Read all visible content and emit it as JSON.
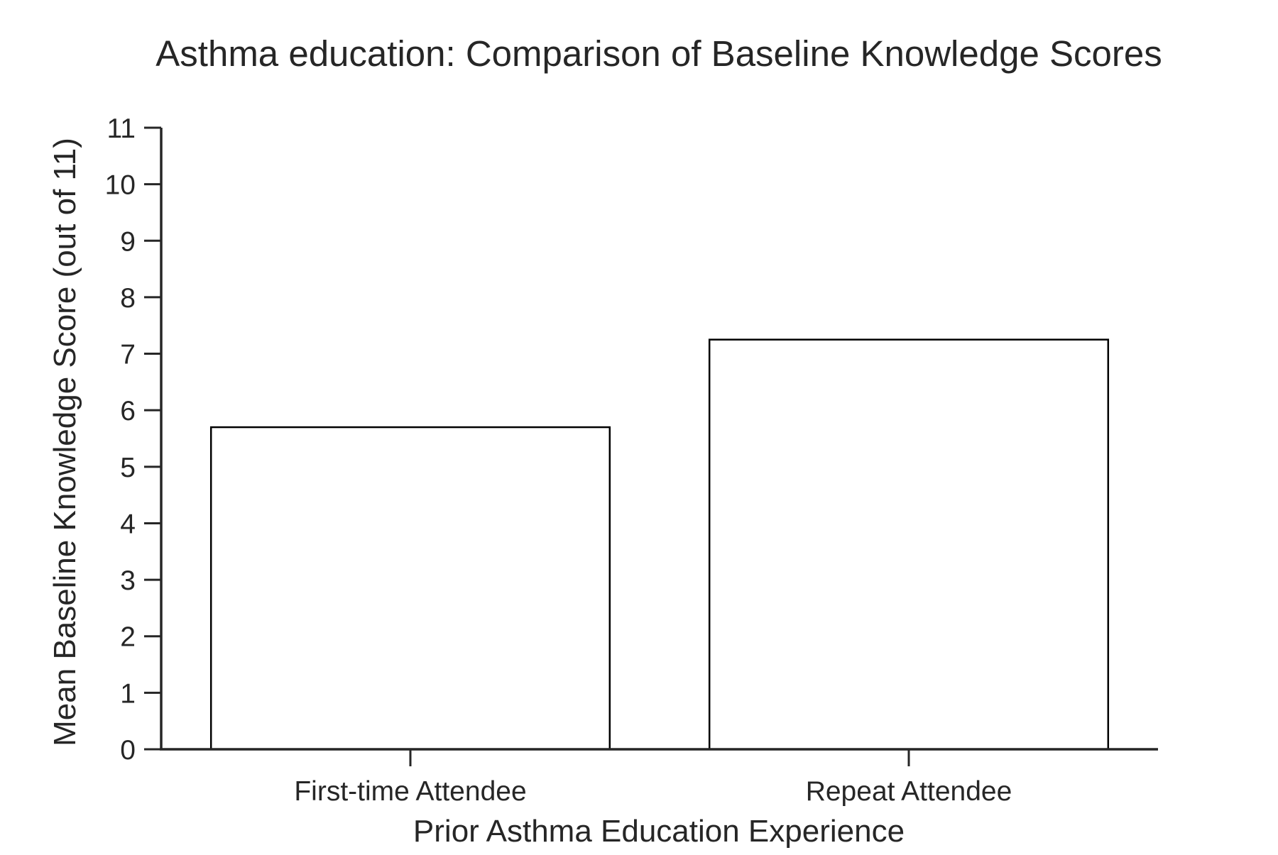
{
  "chart_data": {
    "type": "bar",
    "title": "Asthma education: Comparison of Baseline Knowledge Scores",
    "xlabel": "Prior Asthma Education Experience",
    "ylabel": "Mean Baseline Knowledge Score (out of 11)",
    "categories": [
      "First-time Attendee",
      "Repeat Attendee"
    ],
    "values": [
      5.7,
      7.25
    ],
    "ylim": [
      0,
      11
    ],
    "yticks": [
      0,
      1,
      2,
      3,
      4,
      5,
      6,
      7,
      8,
      9,
      10,
      11
    ],
    "grid": false,
    "legend": "none",
    "colors": {
      "bar_fill": "#ffffff",
      "bar_edge": "#000000",
      "axis": "#262626",
      "text": "#262626"
    }
  }
}
